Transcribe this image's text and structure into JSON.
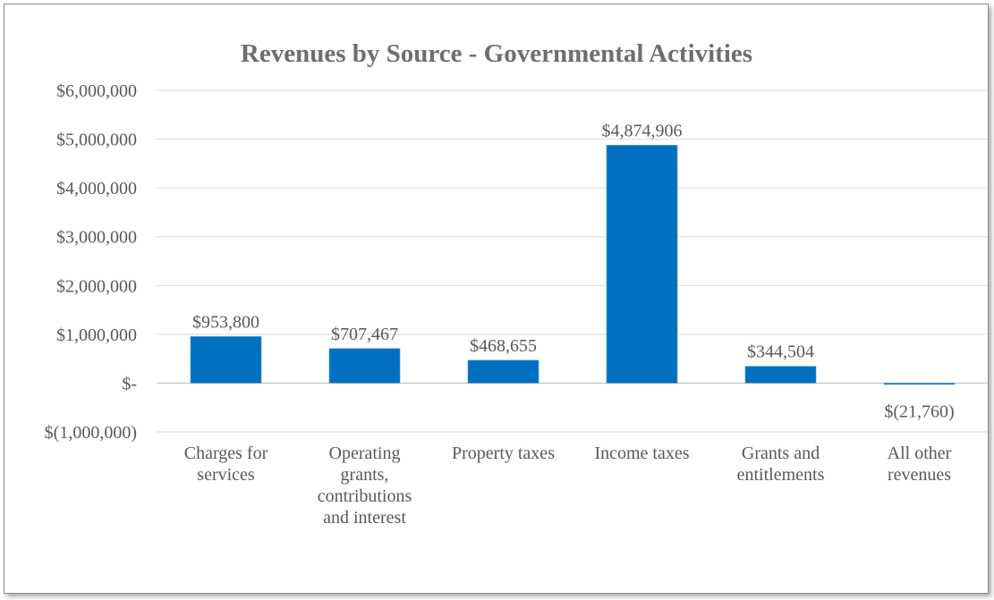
{
  "chart_data": {
    "type": "bar",
    "title": "Revenues by Source - Governmental Activities",
    "xlabel": "",
    "ylabel": "",
    "categories": [
      [
        "Charges for",
        "services"
      ],
      [
        "Operating",
        "grants,",
        "contributions",
        "and interest"
      ],
      [
        "Property taxes"
      ],
      [
        "Income taxes"
      ],
      [
        "Grants and",
        "entitlements"
      ],
      [
        "All other",
        "revenues"
      ]
    ],
    "values": [
      953800,
      707467,
      468655,
      4874906,
      344504,
      -21760
    ],
    "data_labels": [
      "$953,800",
      "$707,467",
      "$468,655",
      "$4,874,906",
      "$344,504",
      "$(21,760)"
    ],
    "ylim": [
      -1000000,
      6000000
    ],
    "yticks": [
      6000000,
      5000000,
      4000000,
      3000000,
      2000000,
      1000000,
      0,
      -1000000
    ],
    "ytick_labels": [
      "$6,000,000",
      "$5,000,000",
      "$4,000,000",
      "$3,000,000",
      "$2,000,000",
      "$1,000,000",
      "$-",
      "$(1,000,000)"
    ],
    "grid": true,
    "legend": "none",
    "bar_color": "#0070c0"
  }
}
